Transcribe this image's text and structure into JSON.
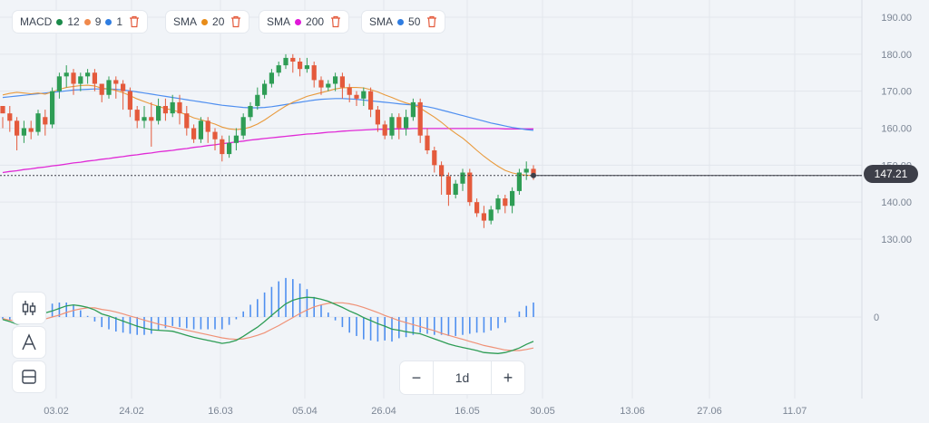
{
  "indicators": [
    {
      "name": "MACD",
      "params": [
        {
          "value": "12",
          "color": "#1b8a4a"
        },
        {
          "value": "9",
          "color": "#f0894c"
        },
        {
          "value": "1",
          "color": "#2f7de1"
        }
      ]
    },
    {
      "name": "SMA",
      "params": [
        {
          "value": "20",
          "color": "#e88c19"
        }
      ]
    },
    {
      "name": "SMA",
      "params": [
        {
          "value": "200",
          "color": "#e017d8"
        }
      ]
    },
    {
      "name": "SMA",
      "params": [
        {
          "value": "50",
          "color": "#2f7de1"
        }
      ]
    }
  ],
  "zoom": {
    "minus": "−",
    "timeframe": "1d",
    "plus": "+"
  },
  "tools": [
    {
      "icon": "candles-icon"
    },
    {
      "icon": "drawing-icon"
    },
    {
      "icon": "layout-icon"
    }
  ],
  "last_price": "147.21",
  "colors": {
    "up": "#2e9d55",
    "down": "#e45a3c",
    "sma20": "#e99a3c",
    "sma50": "#4f8ff0",
    "sma200": "#e02ad6",
    "macd_line": "#2e9d55",
    "signal_line": "#f09176",
    "hist": "#4f8ff0"
  },
  "chart_data": {
    "type": "candlestick",
    "price_axis": {
      "ticks": [
        "190.00",
        "180.00",
        "170.00",
        "160.00",
        "150.00",
        "140.00",
        "130.00"
      ],
      "range": [
        120,
        190
      ]
    },
    "macd_axis_label": "0",
    "x_ticks": [
      "03.02",
      "24.02",
      "16.03",
      "05.04",
      "26.04",
      "16.05",
      "30.05",
      "13.06",
      "27.06",
      "11.07"
    ],
    "candles": [
      [
        166,
        164,
        163,
        160
      ],
      [
        164,
        162,
        166,
        159
      ],
      [
        162,
        158,
        163,
        154
      ],
      [
        158,
        160,
        162,
        156
      ],
      [
        160,
        159,
        162,
        157
      ],
      [
        159,
        164,
        165,
        158
      ],
      [
        163,
        161,
        165,
        158
      ],
      [
        161,
        170,
        171,
        160
      ],
      [
        170,
        174,
        175,
        168
      ],
      [
        174,
        175,
        177,
        171
      ],
      [
        175,
        172,
        176,
        169
      ],
      [
        172,
        174,
        175,
        170
      ],
      [
        174,
        175,
        176,
        172
      ],
      [
        175,
        172,
        176,
        170
      ],
      [
        172,
        169,
        172,
        167
      ],
      [
        169,
        173,
        174,
        168
      ],
      [
        173,
        172,
        174,
        168
      ],
      [
        172,
        170,
        173,
        165
      ],
      [
        170,
        165,
        171,
        163
      ],
      [
        165,
        162,
        166,
        160
      ],
      [
        162,
        163,
        166,
        160
      ],
      [
        163,
        162,
        167,
        155
      ],
      [
        162,
        166,
        168,
        161
      ],
      [
        166,
        164,
        168,
        162
      ],
      [
        164,
        167,
        169,
        163
      ],
      [
        167,
        164,
        169,
        161
      ],
      [
        164,
        160,
        166,
        158
      ],
      [
        160,
        157,
        161,
        156
      ],
      [
        157,
        162,
        163,
        156
      ],
      [
        162,
        159,
        163,
        156
      ],
      [
        159,
        157,
        160,
        154
      ],
      [
        157,
        153,
        158,
        151
      ],
      [
        153,
        156,
        158,
        152
      ],
      [
        156,
        158,
        160,
        154
      ],
      [
        158,
        163,
        164,
        157
      ],
      [
        163,
        166,
        167,
        162
      ],
      [
        166,
        169,
        171,
        165
      ],
      [
        169,
        172,
        173,
        168
      ],
      [
        172,
        175,
        176,
        171
      ],
      [
        175,
        177,
        178,
        174
      ],
      [
        177,
        179,
        180,
        176
      ],
      [
        179,
        178,
        180,
        175
      ],
      [
        178,
        176,
        179,
        174
      ],
      [
        176,
        177,
        179,
        175
      ],
      [
        177,
        173,
        178,
        171
      ],
      [
        173,
        171,
        174,
        169
      ],
      [
        171,
        172,
        173,
        170
      ],
      [
        172,
        174,
        175,
        170
      ],
      [
        174,
        171,
        175,
        168
      ],
      [
        171,
        169,
        172,
        167
      ],
      [
        169,
        168,
        170,
        166
      ],
      [
        168,
        170,
        171,
        166
      ],
      [
        170,
        165,
        171,
        163
      ],
      [
        165,
        161,
        166,
        159
      ],
      [
        161,
        158,
        162,
        157
      ],
      [
        158,
        163,
        164,
        157
      ],
      [
        163,
        160,
        164,
        157
      ],
      [
        160,
        163,
        165,
        158
      ],
      [
        163,
        167,
        168,
        162
      ],
      [
        167,
        158,
        168,
        156
      ],
      [
        158,
        154,
        160,
        153
      ],
      [
        154,
        150,
        155,
        148
      ],
      [
        150,
        147,
        151,
        142
      ],
      [
        147,
        142,
        148,
        139
      ],
      [
        142,
        145,
        146,
        141
      ],
      [
        145,
        148,
        149,
        143
      ],
      [
        148,
        140,
        149,
        139
      ],
      [
        140,
        137,
        141,
        136
      ],
      [
        137,
        135,
        139,
        133
      ],
      [
        135,
        138,
        139,
        134
      ],
      [
        138,
        141,
        142,
        137
      ],
      [
        141,
        139,
        142,
        137
      ],
      [
        139,
        143,
        144,
        137
      ],
      [
        143,
        148,
        149,
        142
      ],
      [
        148,
        149,
        151,
        146
      ],
      [
        149,
        147,
        150,
        146
      ]
    ],
    "series": [
      {
        "name": "SMA 20",
        "values": [
          169.0,
          169.4,
          169.7,
          169.5,
          169.3,
          169.5,
          169.2,
          169.8,
          170.5,
          171.0,
          171.3,
          171.5,
          171.6,
          171.4,
          170.8,
          170.6,
          170.2,
          169.6,
          168.8,
          167.9,
          167.2,
          166.5,
          165.9,
          165.3,
          164.9,
          164.3,
          163.6,
          162.8,
          162.3,
          161.7,
          161.1,
          160.3,
          159.8,
          159.6,
          159.8,
          160.3,
          161.1,
          162.2,
          163.5,
          164.8,
          166.0,
          167.0,
          167.8,
          168.6,
          169.1,
          169.6,
          170.1,
          170.6,
          170.9,
          171.0,
          171.0,
          170.9,
          170.4,
          169.8,
          169.0,
          168.3,
          167.5,
          166.8,
          166.3,
          165.4,
          164.2,
          163.0,
          161.6,
          160.0,
          158.6,
          157.3,
          155.7,
          154.0,
          152.4,
          151.0,
          149.7,
          148.6,
          147.9,
          147.5,
          147.3,
          147.2
        ]
      },
      {
        "name": "SMA 50",
        "values": [
          168.3,
          168.5,
          168.7,
          168.9,
          169.1,
          169.3,
          169.5,
          169.7,
          169.9,
          170.1,
          170.3,
          170.4,
          170.5,
          170.6,
          170.6,
          170.6,
          170.5,
          170.3,
          170.1,
          169.8,
          169.5,
          169.2,
          168.9,
          168.6,
          168.3,
          168.0,
          167.7,
          167.4,
          167.1,
          166.8,
          166.5,
          166.2,
          166.0,
          165.8,
          165.6,
          165.5,
          165.5,
          165.6,
          165.8,
          166.1,
          166.4,
          166.7,
          167.0,
          167.3,
          167.6,
          167.8,
          167.9,
          168.0,
          168.0,
          167.9,
          167.8,
          167.6,
          167.4,
          167.2,
          167.0,
          166.8,
          166.6,
          166.4,
          166.3,
          166.1,
          165.8,
          165.4,
          164.9,
          164.4,
          163.9,
          163.4,
          162.9,
          162.4,
          161.9,
          161.4,
          161.0,
          160.6,
          160.2,
          159.9,
          159.6,
          159.4
        ]
      },
      {
        "name": "SMA 200",
        "values": [
          148.0,
          148.3,
          148.5,
          148.8,
          149.0,
          149.3,
          149.5,
          149.8,
          150.0,
          150.3,
          150.6,
          150.8,
          151.1,
          151.3,
          151.6,
          151.8,
          152.1,
          152.3,
          152.6,
          152.8,
          153.1,
          153.3,
          153.6,
          153.8,
          154.0,
          154.3,
          154.5,
          154.8,
          155.0,
          155.3,
          155.5,
          155.8,
          156.0,
          156.3,
          156.5,
          156.8,
          157.0,
          157.2,
          157.4,
          157.6,
          157.8,
          158.0,
          158.2,
          158.4,
          158.5,
          158.7,
          158.9,
          159.0,
          159.2,
          159.3,
          159.4,
          159.5,
          159.6,
          159.7,
          159.7,
          159.8,
          159.8,
          159.8,
          159.9,
          159.9,
          159.9,
          159.9,
          159.9,
          159.9,
          159.9,
          159.9,
          159.9,
          159.9,
          159.9,
          159.9,
          159.9,
          159.8,
          159.8,
          159.8,
          159.8,
          159.8
        ]
      },
      {
        "name": "MACD",
        "values": [
          -0.5,
          -0.9,
          -1.4,
          -1.2,
          -0.9,
          0.4,
          0.8,
          1.2,
          1.7,
          2.2,
          2.4,
          2.2,
          1.9,
          1.4,
          0.6,
          0.2,
          -0.3,
          -0.8,
          -1.3,
          -1.8,
          -2.2,
          -2.5,
          -2.6,
          -2.7,
          -2.8,
          -3.2,
          -3.6,
          -4.0,
          -4.3,
          -4.6,
          -4.9,
          -5.2,
          -5.0,
          -4.6,
          -3.8,
          -2.9,
          -2.0,
          -0.9,
          0.3,
          1.5,
          2.6,
          3.3,
          3.7,
          3.9,
          3.8,
          3.5,
          3.1,
          2.5,
          1.9,
          1.2,
          0.6,
          -0.1,
          -0.7,
          -1.3,
          -1.8,
          -2.4,
          -2.6,
          -2.9,
          -3.1,
          -3.3,
          -3.8,
          -4.3,
          -4.8,
          -5.3,
          -5.7,
          -6.0,
          -6.3,
          -6.6,
          -7.0,
          -7.1,
          -7.2,
          -7.0,
          -6.6,
          -6.1,
          -5.4,
          -4.8
        ]
      },
      {
        "name": "Signal",
        "values": [
          -0.3,
          -0.6,
          -0.8,
          -0.9,
          -0.9,
          -0.7,
          -0.4,
          0.0,
          0.4,
          0.9,
          1.3,
          1.6,
          1.8,
          1.8,
          1.5,
          1.3,
          1.0,
          0.6,
          0.2,
          -0.2,
          -0.6,
          -1.0,
          -1.4,
          -1.7,
          -2.0,
          -2.3,
          -2.6,
          -2.9,
          -3.2,
          -3.5,
          -3.8,
          -4.1,
          -4.3,
          -4.4,
          -4.3,
          -4.0,
          -3.6,
          -3.1,
          -2.4,
          -1.7,
          -0.9,
          -0.1,
          0.7,
          1.4,
          2.0,
          2.4,
          2.7,
          2.8,
          2.8,
          2.6,
          2.3,
          1.9,
          1.4,
          0.9,
          0.3,
          -0.2,
          -0.7,
          -1.1,
          -1.5,
          -1.9,
          -2.3,
          -2.7,
          -3.2,
          -3.6,
          -4.0,
          -4.4,
          -4.8,
          -5.2,
          -5.6,
          -5.9,
          -6.2,
          -6.5,
          -6.6,
          -6.6,
          -6.4,
          -6.1
        ]
      }
    ]
  }
}
